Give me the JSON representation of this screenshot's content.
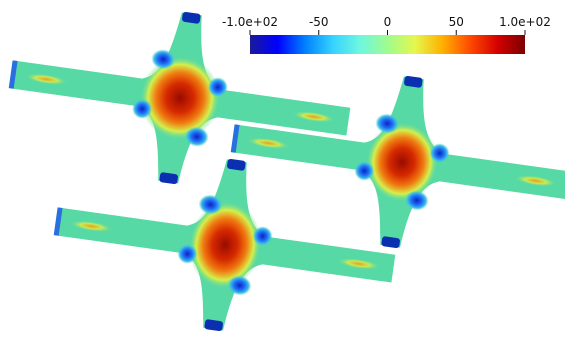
{
  "colorbar": {
    "ticks": [
      {
        "value": -100,
        "label": "-1.0e+02"
      },
      {
        "value": -50,
        "label": "-50"
      },
      {
        "value": 0,
        "label": "0"
      },
      {
        "value": 50,
        "label": "50"
      },
      {
        "value": 100,
        "label": "1.0e+02"
      }
    ],
    "range": [
      -100,
      100
    ],
    "colormap": [
      "#1a1a99",
      "#0000ff",
      "#0080ff",
      "#35d2ff",
      "#6ef7e0",
      "#9efc8e",
      "#e6f74d",
      "#ffb000",
      "#ff4a00",
      "#d40000",
      "#7a0000"
    ]
  },
  "field": {
    "background_color": "#56d9a4",
    "high_color": "#c41b00",
    "low_color": "#0a3cd6"
  }
}
